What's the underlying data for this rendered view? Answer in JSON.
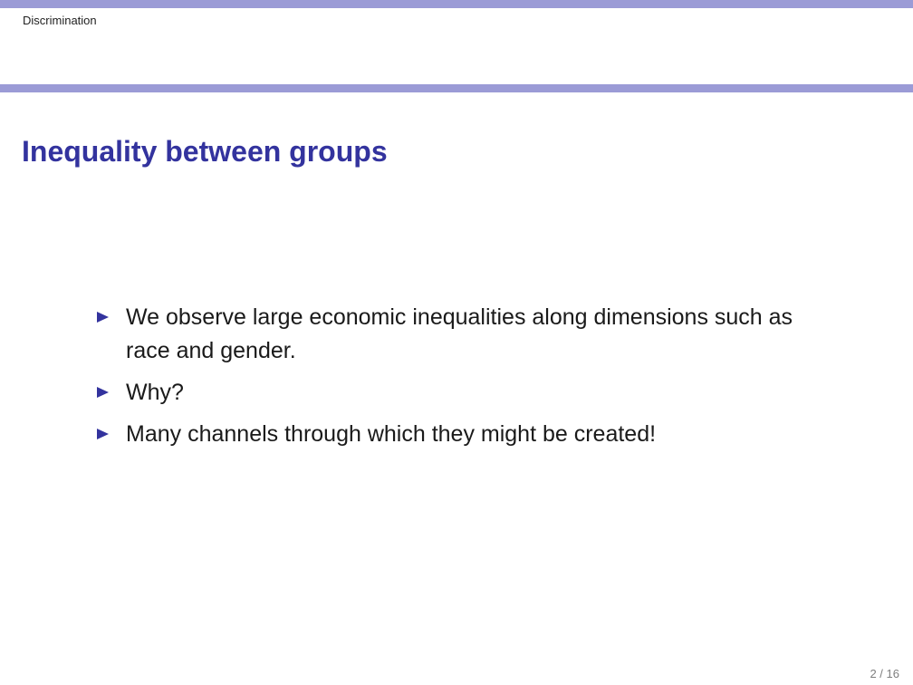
{
  "header": {
    "section": "Discrimination",
    "accent_color": "#9b9bd6"
  },
  "slide": {
    "title": "Inequality between groups",
    "title_color": "#33339e",
    "bullet_icon": "right-triangle-icon",
    "bullets": [
      {
        "text": "We observe large economic inequalities along dimensions such as race and gender."
      },
      {
        "text": "Why?"
      },
      {
        "text": "Many channels through which they might be created!"
      }
    ]
  },
  "footer": {
    "page_number": "2 / 16"
  }
}
